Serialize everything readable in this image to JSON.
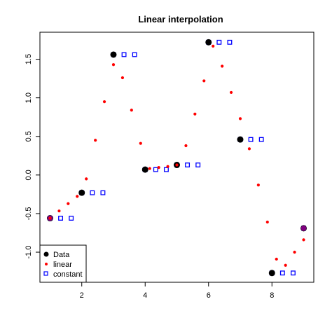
{
  "chart_data": {
    "type": "scatter",
    "title": "Linear interpolation",
    "xlabel": "",
    "ylabel": "",
    "xlim": [
      0.68,
      9.32
    ],
    "ylim": [
      -1.39,
      1.85
    ],
    "x_ticks": [
      2,
      4,
      6,
      8
    ],
    "x_tick_labels": [
      "2",
      "4",
      "6",
      "8"
    ],
    "y_ticks": [
      -1.0,
      -0.5,
      0.0,
      0.5,
      1.0,
      1.5
    ],
    "y_tick_labels": [
      "-1.0",
      "-0.5",
      "0.0",
      "0.5",
      "1.0",
      "1.5"
    ],
    "grid": false,
    "legend_position": "bottom-left",
    "series": [
      {
        "name": "Data",
        "marker": "filled-circle",
        "color": "#000000",
        "x": [
          1,
          2,
          3,
          4,
          5,
          6,
          7,
          8,
          9
        ],
        "y": [
          -0.56,
          -0.23,
          1.56,
          0.07,
          0.13,
          1.72,
          0.46,
          -1.27,
          -0.69
        ]
      },
      {
        "name": "linear",
        "marker": "small-filled-circle",
        "color": "#ff0000",
        "x": [
          1.0,
          1.286,
          1.571,
          1.857,
          2.143,
          2.429,
          2.714,
          3.0,
          3.286,
          3.571,
          3.857,
          4.143,
          4.429,
          4.714,
          5.0,
          5.286,
          5.571,
          5.857,
          6.143,
          6.429,
          6.714,
          7.0,
          7.286,
          7.571,
          7.857,
          8.143,
          8.429,
          8.714,
          9.0
        ],
        "y": [
          -0.56,
          -0.466,
          -0.371,
          -0.277,
          -0.05,
          0.45,
          0.95,
          1.43,
          1.26,
          0.84,
          0.41,
          0.084,
          0.097,
          0.11,
          0.13,
          0.38,
          0.79,
          1.22,
          1.67,
          1.41,
          1.07,
          0.73,
          0.34,
          -0.13,
          -0.61,
          -1.09,
          -1.17,
          -1.0,
          -0.84
        ]
      },
      {
        "name": "constant",
        "marker": "open-square",
        "color": "#0000ff",
        "x": [
          1.0,
          1.333,
          1.667,
          2.0,
          2.333,
          2.667,
          3.0,
          3.333,
          3.667,
          4.0,
          4.333,
          4.667,
          5.0,
          5.333,
          5.667,
          6.0,
          6.333,
          6.667,
          7.0,
          7.333,
          7.667,
          8.0,
          8.333,
          8.667,
          9.0
        ],
        "y": [
          -0.56,
          -0.56,
          -0.56,
          -0.23,
          -0.23,
          -0.23,
          1.56,
          1.56,
          1.56,
          0.07,
          0.07,
          0.07,
          0.13,
          0.13,
          0.13,
          1.72,
          1.72,
          1.72,
          0.46,
          0.46,
          0.46,
          -1.27,
          -1.27,
          -1.27,
          -0.69
        ]
      }
    ],
    "colors": {
      "data": "#000000",
      "linear": "#ff0000",
      "constant": "#0000ff",
      "data_endpoint_fill": "#800080"
    }
  }
}
